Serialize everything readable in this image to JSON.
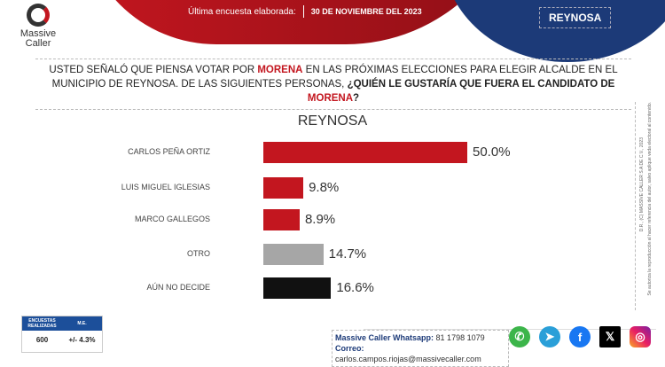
{
  "header": {
    "logo_text": [
      "Massive",
      "Caller"
    ],
    "date_label": "Última encuesta elaborada:",
    "date_value": "30 DE NOVIEMBRE  DEL 2023",
    "city": "REYNOSA"
  },
  "question": {
    "p1": "USTED SEÑALÓ QUE PIENSA VOTAR POR ",
    "m1": "MORENA",
    "p2": " EN LAS PRÓXIMAS ELECCIONES PARA ELEGIR ALCALDE EN EL MUNICIPIO DE REYNOSA. DE LAS SIGUIENTES PERSONAS, ",
    "b1": "¿QUIÉN LE GUSTARÍA QUE FUERA EL CANDIDATO DE ",
    "m2": "MORENA",
    "b2": "?"
  },
  "chart_data": {
    "type": "bar",
    "orientation": "horizontal",
    "title": "REYNOSA",
    "categories": [
      "CARLOS PEÑA ORTIZ",
      "LUIS MIGUEL IGLESIAS",
      "MARCO GALLEGOS",
      "OTRO",
      "AÚN NO DECIDE"
    ],
    "values": [
      50.0,
      9.8,
      8.9,
      14.7,
      16.6
    ],
    "value_labels": [
      "50.0%",
      "9.8%",
      "8.9%",
      "14.7%",
      "16.6%"
    ],
    "colors": [
      "#c3161f",
      "#c3161f",
      "#c3161f",
      "#a6a6a6",
      "#111111"
    ]
  },
  "side_notes": [
    "D.R., (C) MASSIVE CALLER S.A DE C.V., 2023",
    "Se autoriza la reproducción al hacer referencia del autor, salvo aplique veda electoral al contenido."
  ],
  "stats": {
    "h1": "ENCUESTAS REALIZADAS",
    "h2": "M.E.",
    "v1": "600",
    "v2": "+/- 4.3%"
  },
  "contact": {
    "wa_label": "Massive Caller Whatsapp:",
    "wa": " 81 1798 1079",
    "mail_label": "Correo:",
    "mail": " carlos.campos.riojas@massivecaller.com"
  },
  "social": [
    "whatsapp",
    "telegram",
    "facebook",
    "x",
    "instagram"
  ]
}
